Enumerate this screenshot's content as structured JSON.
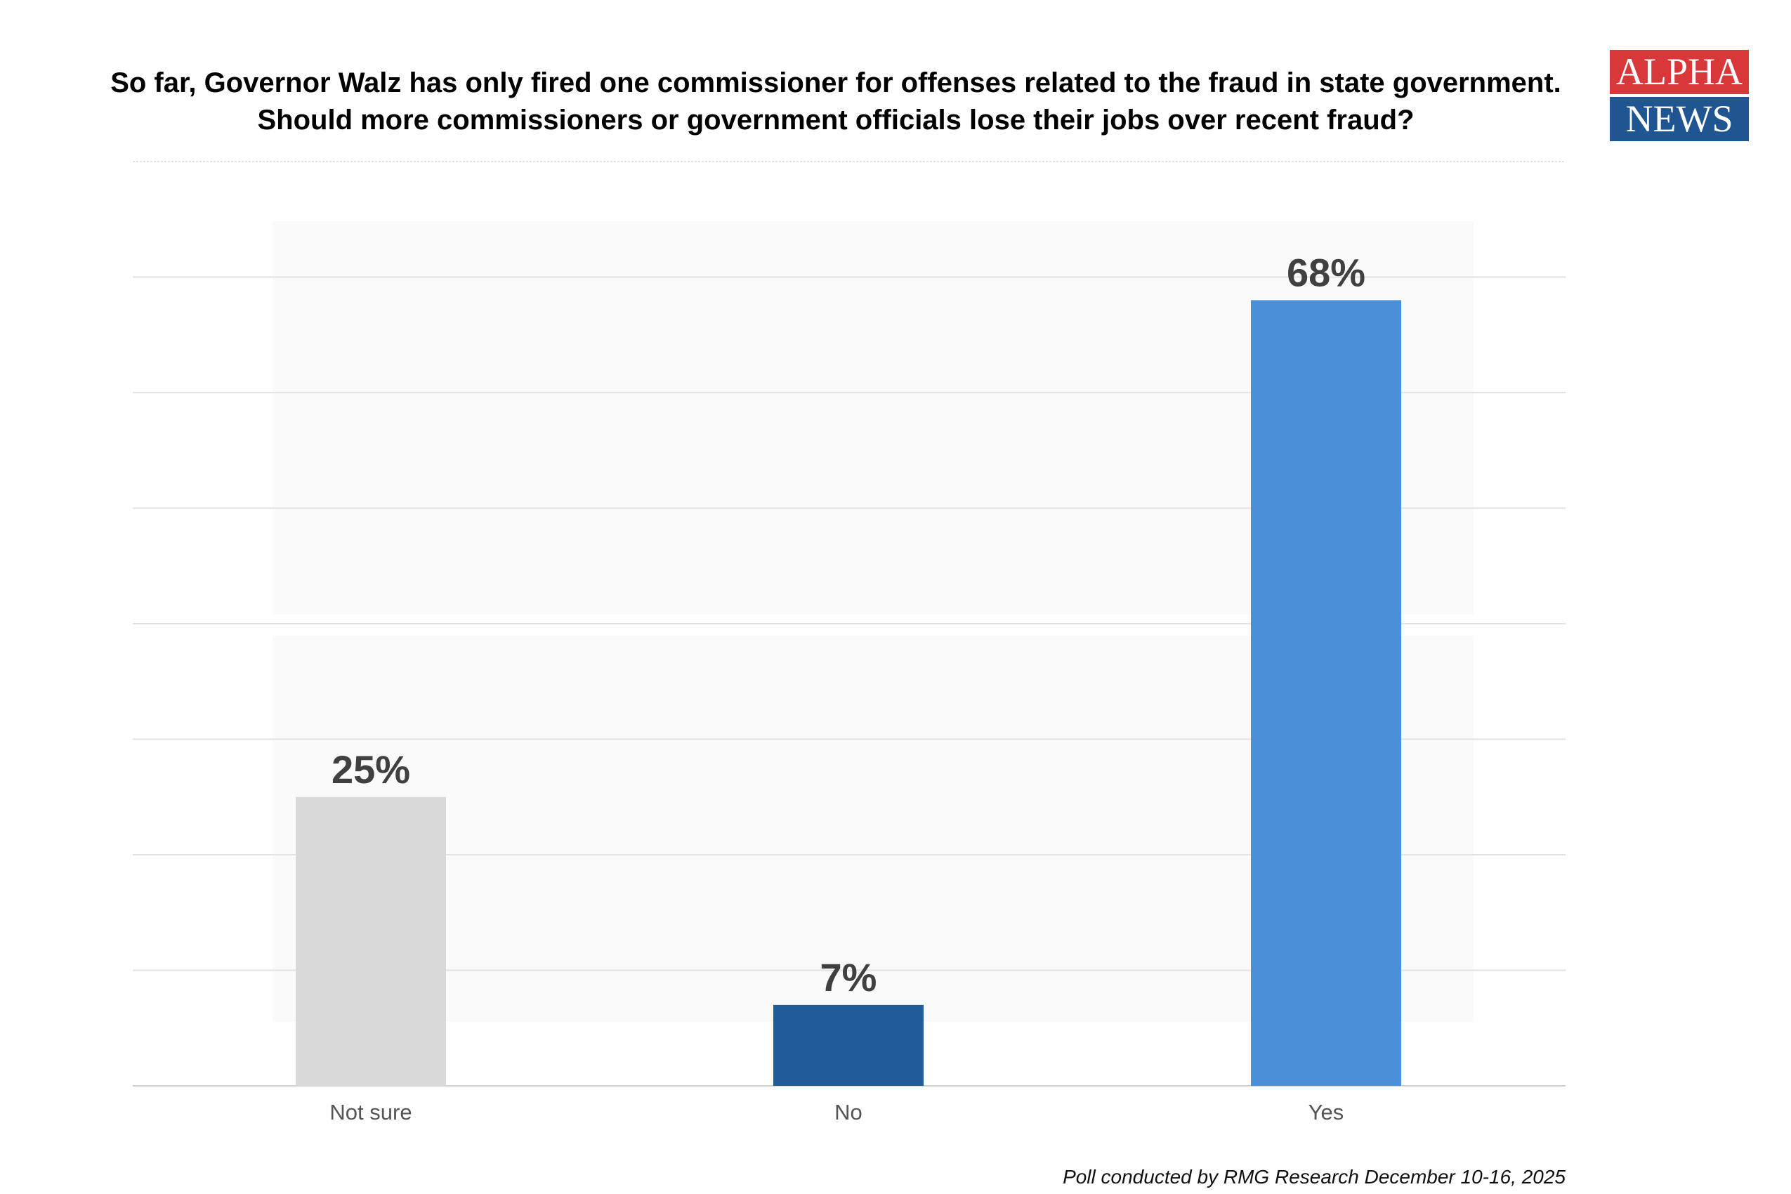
{
  "title": "So far, Governor Walz has only fired one commissioner for offenses related to the fraud in state government. Should more commissioners or government officials lose their jobs over recent fraud?",
  "logo": {
    "line1": "ALPHA",
    "line2": "NEWS",
    "colors": {
      "top": "#d9383a",
      "bottom": "#1f5591"
    }
  },
  "watermark": {
    "line1": "ALPHA",
    "line2": "NEWS"
  },
  "footer": "Poll conducted by RMG Research December 10-16, 2025",
  "chart_data": {
    "type": "bar",
    "title": "So far, Governor Walz has only fired one commissioner for offenses related to the fraud in state government. Should more commissioners or government officials lose their jobs over recent fraud?",
    "categories": [
      "Not sure",
      "No",
      "Yes"
    ],
    "values": [
      25,
      7,
      68
    ],
    "data_labels": [
      "25%",
      "7%",
      "68%"
    ],
    "colors": [
      "#d9d9d9",
      "#1f5c99",
      "#4a90d9"
    ],
    "xlabel": "",
    "ylabel": "",
    "ylim": [
      0,
      80
    ],
    "grid": true,
    "grid_step": 10,
    "y_ticks_shown": false,
    "legend": "none"
  }
}
